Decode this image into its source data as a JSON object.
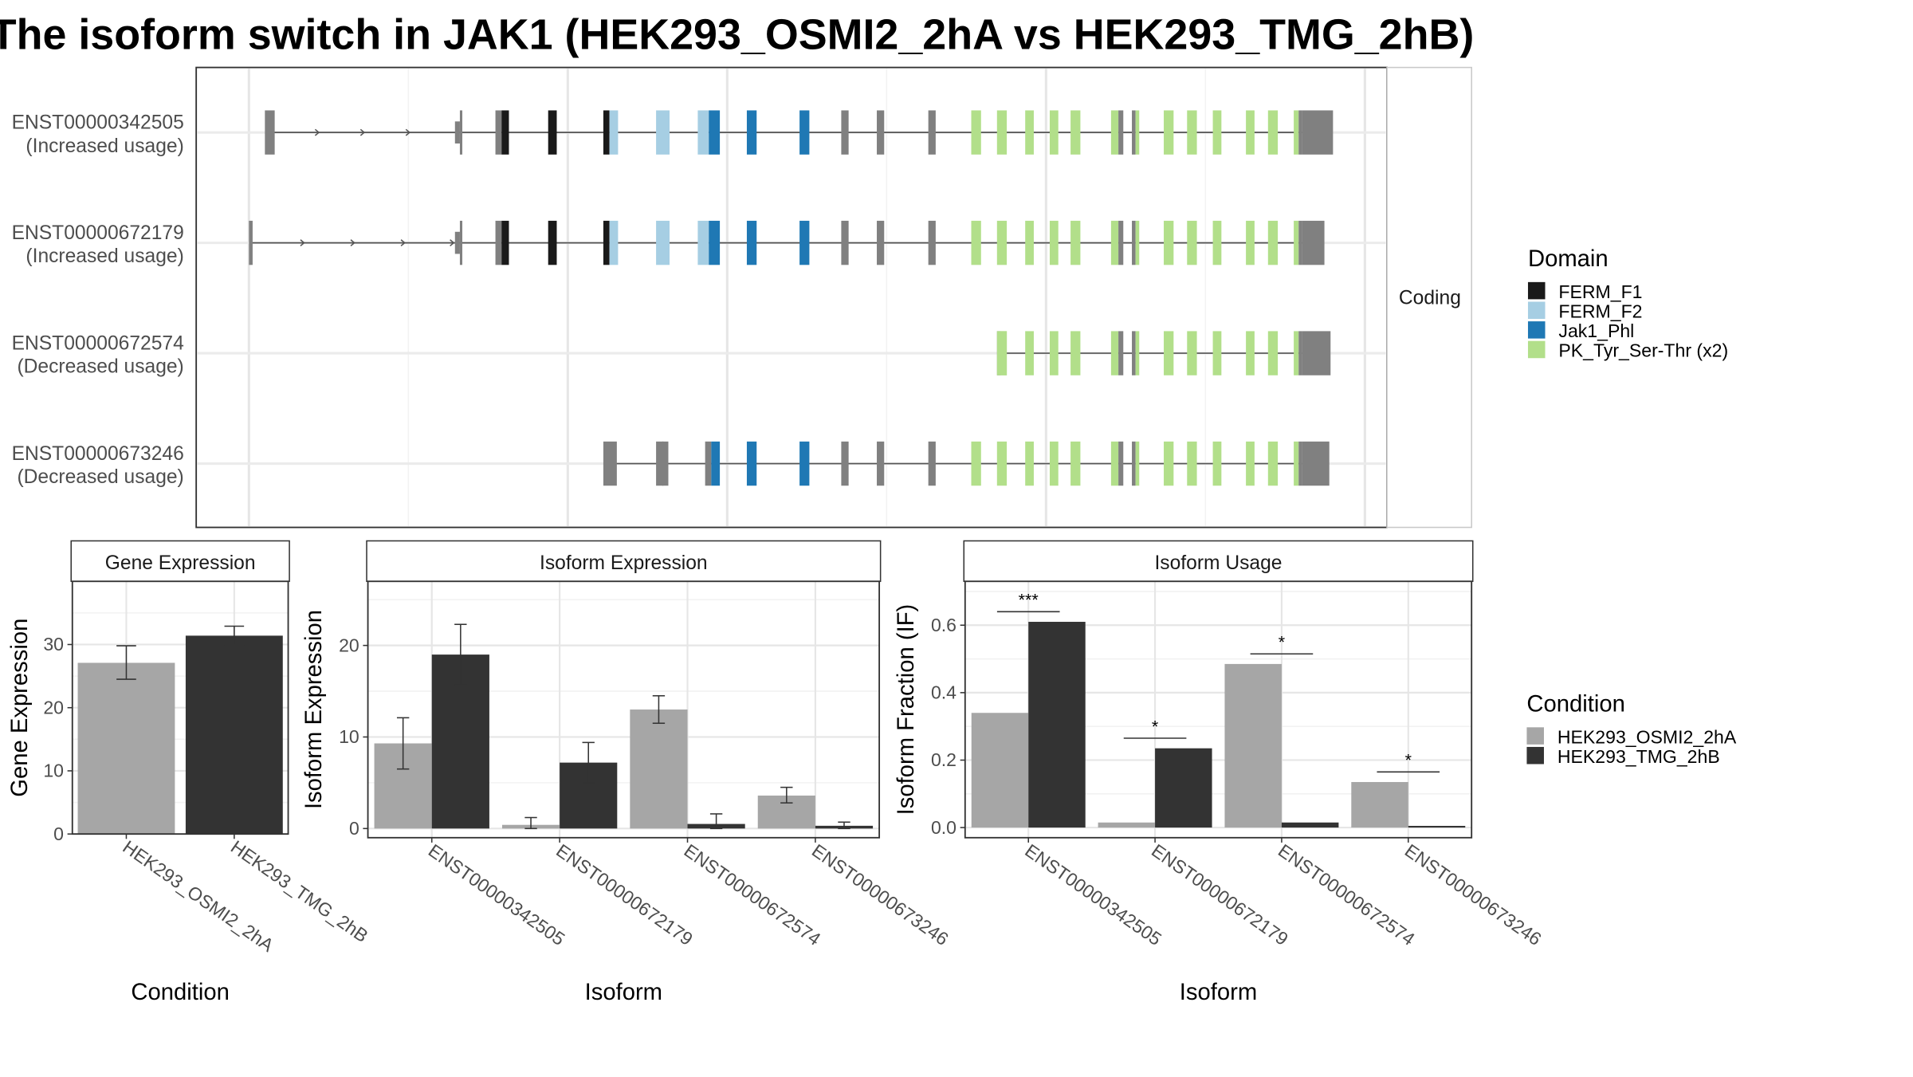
{
  "title": "The isoform switch in JAK1 (HEK293_OSMI2_2hA vs HEK293_TMG_2hB)",
  "colors": {
    "FERM_F1": "#1a1a1a",
    "FERM_F2": "#a6cee3",
    "Jak1_Phl": "#1f78b4",
    "PK_Tyr_Ser-Thr (x2)": "#b2df8a",
    "exon": "#808080",
    "cond_A": "#a6a6a6",
    "cond_B": "#333333"
  },
  "transcript_panel": {
    "facet_label": "Coding",
    "transcripts": [
      {
        "id": "ENST00000342505",
        "usage": "(Increased usage)"
      },
      {
        "id": "ENST00000672179",
        "usage": "(Increased usage)"
      },
      {
        "id": "ENST00000672574",
        "usage": "(Decreased usage)"
      },
      {
        "id": "ENST00000673246",
        "usage": "(Decreased usage)"
      }
    ]
  },
  "legend_domain": {
    "title": "Domain",
    "items": [
      "FERM_F1",
      "FERM_F2",
      "Jak1_Phl",
      "PK_Tyr_Ser-Thr (x2)"
    ]
  },
  "legend_condition": {
    "title": "Condition",
    "items": [
      "HEK293_OSMI2_2hA",
      "HEK293_TMG_2hB"
    ]
  },
  "chart_data": [
    {
      "type": "bar",
      "title": "Gene Expression",
      "xlabel": "Condition",
      "ylabel": "Gene Expression",
      "ylim": [
        0,
        40
      ],
      "yticks": [
        0,
        10,
        20,
        30
      ],
      "categories": [
        "HEK293_OSMI2_2hA",
        "HEK293_TMG_2hB"
      ],
      "values": [
        27.1,
        31.4
      ],
      "errors": [
        [
          24.5,
          29.8
        ],
        [
          29.9,
          32.9
        ]
      ]
    },
    {
      "type": "bar",
      "title": "Isoform Expression",
      "xlabel": "Isoform",
      "ylabel": "Isoform Expression",
      "ylim": [
        -1,
        27
      ],
      "yticks": [
        0,
        10,
        20
      ],
      "categories": [
        "ENST00000342505",
        "ENST00000672179",
        "ENST00000672574",
        "ENST00000673246"
      ],
      "series": [
        {
          "name": "HEK293_OSMI2_2hA",
          "values": [
            9.3,
            0.4,
            13.0,
            3.6
          ],
          "errors": [
            [
              6.5,
              12.1
            ],
            [
              0.0,
              1.2
            ],
            [
              11.5,
              14.5
            ],
            [
              2.8,
              4.5
            ]
          ]
        },
        {
          "name": "HEK293_TMG_2hB",
          "values": [
            19.0,
            7.2,
            0.5,
            0.3
          ],
          "errors": [
            [
              15.7,
              22.3
            ],
            [
              5.0,
              9.4
            ],
            [
              0.0,
              1.6
            ],
            [
              0.0,
              0.7
            ]
          ]
        }
      ]
    },
    {
      "type": "bar",
      "title": "Isoform Usage",
      "xlabel": "Isoform",
      "ylabel": "Isoform Fraction (IF)",
      "ylim": [
        -0.03,
        0.73
      ],
      "yticks": [
        0.0,
        0.2,
        0.4,
        0.6
      ],
      "categories": [
        "ENST00000342505",
        "ENST00000672179",
        "ENST00000672574",
        "ENST00000673246"
      ],
      "series": [
        {
          "name": "HEK293_OSMI2_2hA",
          "values": [
            0.34,
            0.015,
            0.485,
            0.135
          ]
        },
        {
          "name": "HEK293_TMG_2hB",
          "values": [
            0.61,
            0.235,
            0.015,
            0.005
          ]
        }
      ],
      "significance": [
        "***",
        "*",
        "*",
        "*"
      ],
      "significance_y": [
        0.64,
        0.265,
        0.515,
        0.165
      ]
    }
  ]
}
